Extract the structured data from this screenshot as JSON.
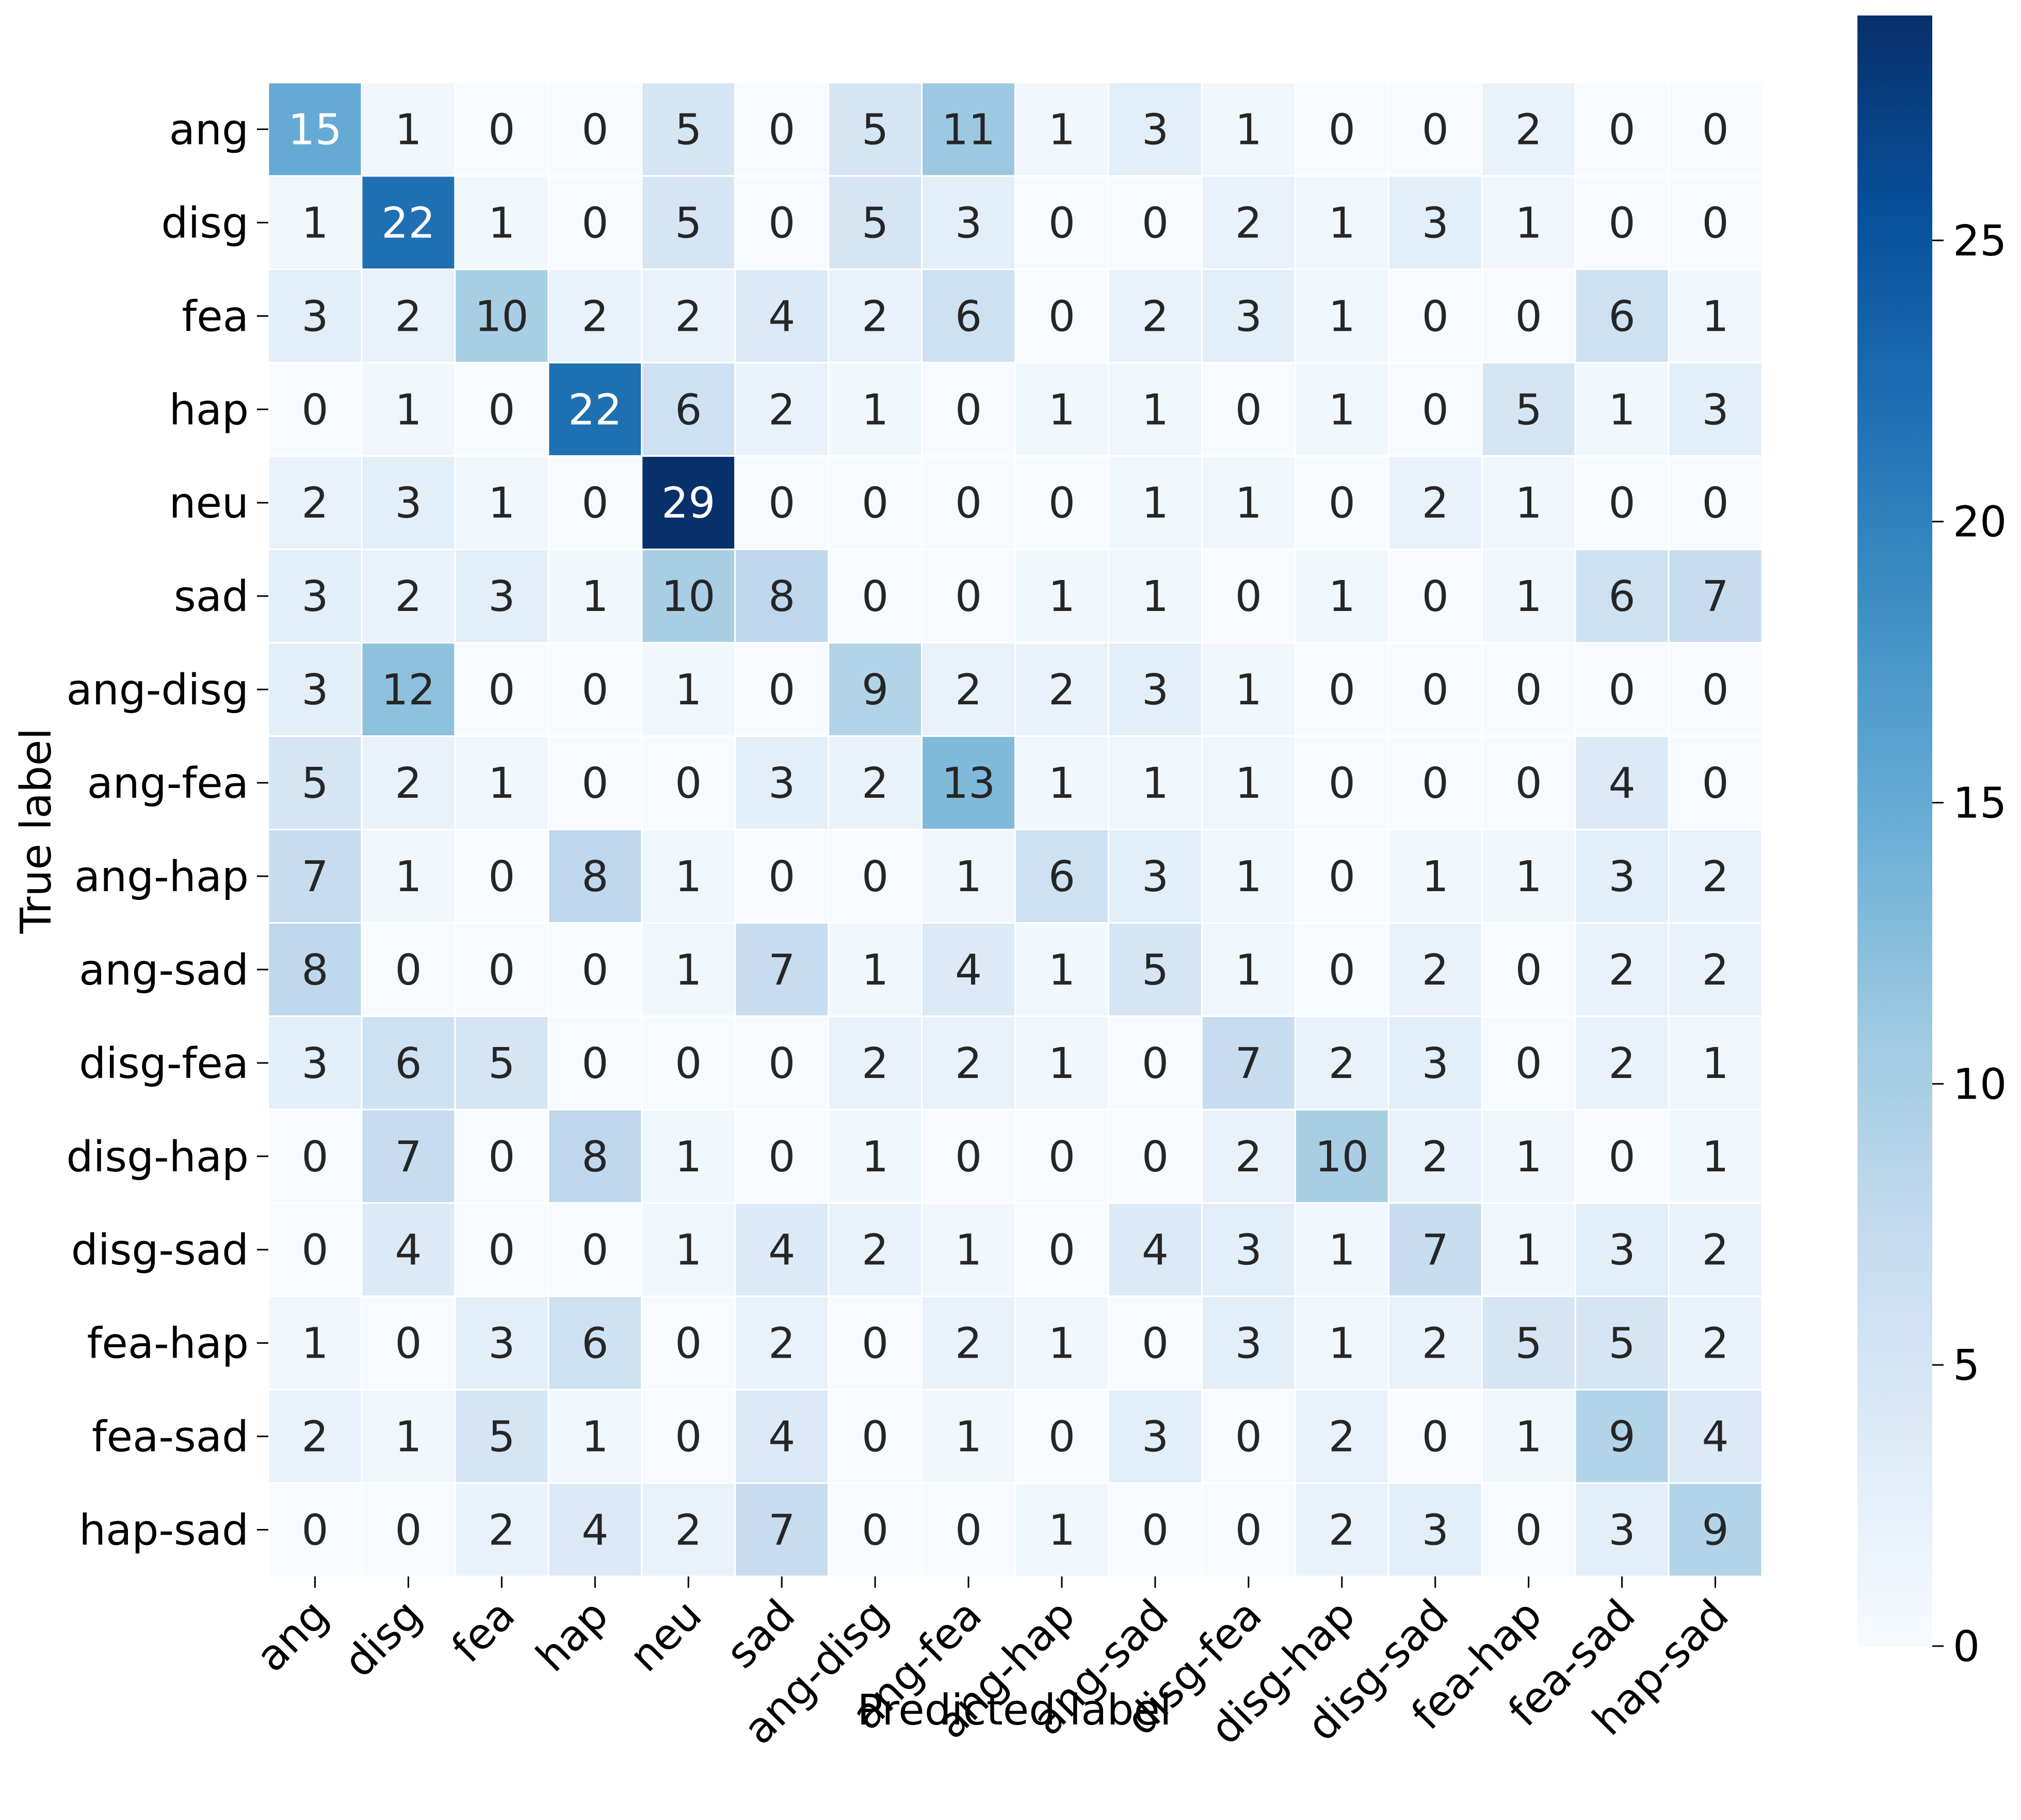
{
  "chart_data": {
    "type": "heatmap",
    "title": "",
    "xlabel": "Predicted label",
    "ylabel": "True label",
    "x_categories": [
      "ang",
      "disg",
      "fea",
      "hap",
      "neu",
      "sad",
      "ang-disg",
      "ang-fea",
      "ang-hap",
      "ang-sad",
      "disg-fea",
      "disg-hap",
      "disg-sad",
      "fea-hap",
      "fea-sad",
      "hap-sad"
    ],
    "y_categories": [
      "ang",
      "disg",
      "fea",
      "hap",
      "neu",
      "sad",
      "ang-disg",
      "ang-fea",
      "ang-hap",
      "ang-sad",
      "disg-fea",
      "disg-hap",
      "disg-sad",
      "fea-hap",
      "fea-sad",
      "hap-sad"
    ],
    "values": [
      [
        15,
        1,
        0,
        0,
        5,
        0,
        5,
        11,
        1,
        3,
        1,
        0,
        0,
        2,
        0,
        0
      ],
      [
        1,
        22,
        1,
        0,
        5,
        0,
        5,
        3,
        0,
        0,
        2,
        1,
        3,
        1,
        0,
        0
      ],
      [
        3,
        2,
        10,
        2,
        2,
        4,
        2,
        6,
        0,
        2,
        3,
        1,
        0,
        0,
        6,
        1
      ],
      [
        0,
        1,
        0,
        22,
        6,
        2,
        1,
        0,
        1,
        1,
        0,
        1,
        0,
        5,
        1,
        3
      ],
      [
        2,
        3,
        1,
        0,
        29,
        0,
        0,
        0,
        0,
        1,
        1,
        0,
        2,
        1,
        0,
        0
      ],
      [
        3,
        2,
        3,
        1,
        10,
        8,
        0,
        0,
        1,
        1,
        0,
        1,
        0,
        1,
        6,
        7
      ],
      [
        3,
        12,
        0,
        0,
        1,
        0,
        9,
        2,
        2,
        3,
        1,
        0,
        0,
        0,
        0,
        0
      ],
      [
        5,
        2,
        1,
        0,
        0,
        3,
        2,
        13,
        1,
        1,
        1,
        0,
        0,
        0,
        4,
        0
      ],
      [
        7,
        1,
        0,
        8,
        1,
        0,
        0,
        1,
        6,
        3,
        1,
        0,
        1,
        1,
        3,
        2
      ],
      [
        8,
        0,
        0,
        0,
        1,
        7,
        1,
        4,
        1,
        5,
        1,
        0,
        2,
        0,
        2,
        2
      ],
      [
        3,
        6,
        5,
        0,
        0,
        0,
        2,
        2,
        1,
        0,
        7,
        2,
        3,
        0,
        2,
        1
      ],
      [
        0,
        7,
        0,
        8,
        1,
        0,
        1,
        0,
        0,
        0,
        2,
        10,
        2,
        1,
        0,
        1
      ],
      [
        0,
        4,
        0,
        0,
        1,
        4,
        2,
        1,
        0,
        4,
        3,
        1,
        7,
        1,
        3,
        2
      ],
      [
        1,
        0,
        3,
        6,
        0,
        2,
        0,
        2,
        1,
        0,
        3,
        1,
        2,
        5,
        5,
        2
      ],
      [
        2,
        1,
        5,
        1,
        0,
        4,
        0,
        1,
        0,
        3,
        0,
        2,
        0,
        1,
        9,
        4
      ],
      [
        0,
        0,
        2,
        4,
        2,
        7,
        0,
        0,
        1,
        0,
        0,
        2,
        3,
        0,
        3,
        9
      ]
    ],
    "colorbar": {
      "min": 0,
      "max": 29,
      "ticks": [
        0,
        5,
        10,
        15,
        20,
        25
      ],
      "colormap": "Blues"
    },
    "colors": {
      "low": "#f7fbff",
      "high": "#08306b",
      "text_dark": "#262626",
      "text_light": "#ffffff"
    }
  }
}
